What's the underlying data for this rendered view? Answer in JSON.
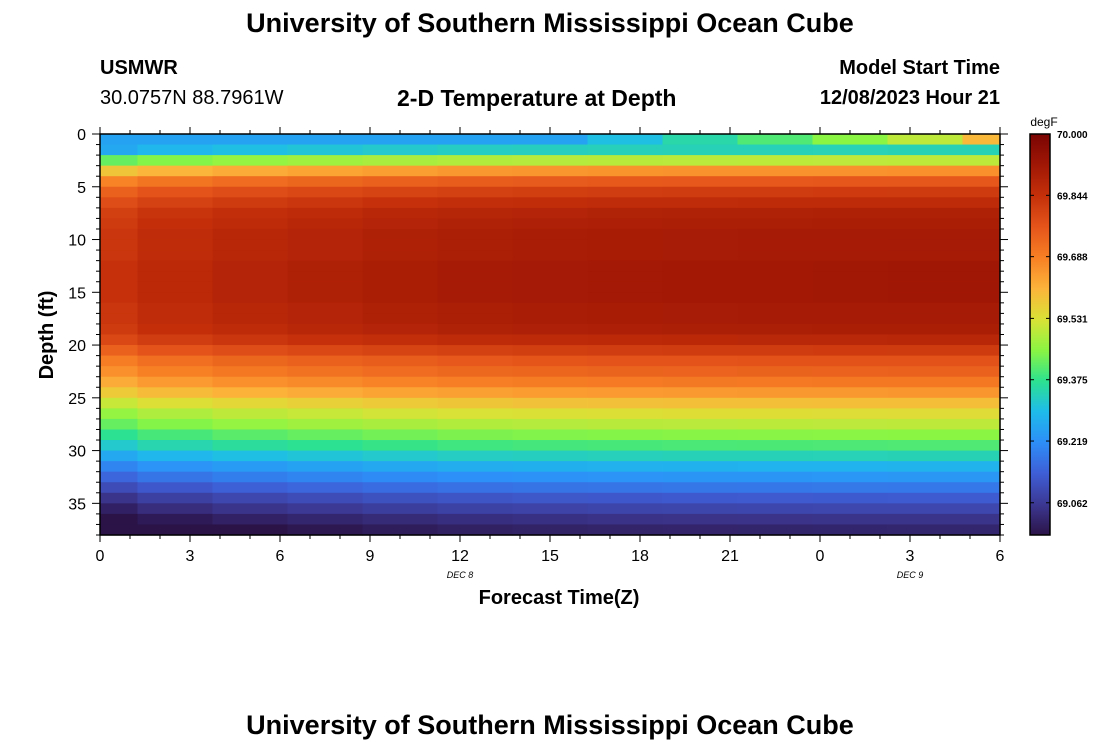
{
  "header": {
    "title": "University of Southern Mississippi Ocean Cube",
    "station": "USMWR",
    "coords": "30.0757N  88.7961W",
    "plot_title": "2-D Temperature at Depth",
    "start_label": "Model Start Time",
    "start_value": "12/08/2023 Hour 21"
  },
  "footer": {
    "title": "University of Southern Mississippi Ocean Cube"
  },
  "colorbar": {
    "unit": "degF",
    "min": 68.98,
    "max": 70.0,
    "ticks": [
      "70.000",
      "69.844",
      "69.688",
      "69.531",
      "69.375",
      "69.219",
      "69.062"
    ],
    "colors": [
      "#2b1347",
      "#3c3893",
      "#3e5ed6",
      "#2d8ef8",
      "#1ebcea",
      "#2de28f",
      "#8cf542",
      "#dae236",
      "#fcb33a",
      "#f77f24",
      "#e4541a",
      "#c5300a",
      "#a01705",
      "#7a0403"
    ]
  },
  "chart_data": {
    "type": "heatmap",
    "title": "2-D Temperature at Depth",
    "xlabel": "Forecast Time(Z)",
    "ylabel": "Depth (ft)",
    "x_ticks": [
      "0",
      "3",
      "6",
      "9",
      "12",
      "15",
      "18",
      "21",
      "0",
      "3",
      "6"
    ],
    "x_hours": [
      0,
      3,
      6,
      9,
      12,
      15,
      18,
      21,
      24,
      27,
      30
    ],
    "x_range": [
      0,
      30
    ],
    "date_labels": [
      {
        "text": "DEC 8",
        "hour": 12
      },
      {
        "text": "DEC 9",
        "hour": 27
      }
    ],
    "y_ticks": [
      "0",
      "5",
      "10",
      "15",
      "20",
      "25",
      "30",
      "35"
    ],
    "y_values": [
      0,
      5,
      10,
      15,
      20,
      25,
      30,
      35
    ],
    "y_range": [
      0,
      38
    ],
    "time_columns_hours": [
      0,
      1.25,
      3.75,
      6.25,
      8.75,
      11.25,
      13.75,
      16.25,
      18.75,
      21.25,
      23.75,
      26.25,
      28.75,
      30
    ],
    "depth_rows_ft": [
      0,
      1,
      2,
      3,
      4,
      5,
      6,
      7,
      8,
      9,
      10,
      11,
      12,
      13,
      14,
      15,
      16,
      17,
      18,
      19,
      20,
      21,
      22,
      23,
      24,
      25,
      26,
      27,
      28,
      29,
      30,
      31,
      32,
      33,
      34,
      35,
      36,
      37,
      38
    ],
    "profile_degF": [
      69.26,
      69.32,
      69.48,
      69.64,
      69.74,
      69.8,
      69.84,
      69.87,
      69.88,
      69.89,
      69.89,
      69.89,
      69.9,
      69.9,
      69.9,
      69.9,
      69.89,
      69.89,
      69.88,
      69.85,
      69.8,
      69.75,
      69.72,
      69.68,
      69.63,
      69.57,
      69.52,
      69.48,
      69.43,
      69.38,
      69.32,
      69.26,
      69.21,
      69.16,
      69.11,
      69.07,
      69.03,
      69.0
    ],
    "column_offsets_degF": [
      -0.06,
      -0.035,
      -0.02,
      -0.01,
      0.0,
      0.008,
      0.012,
      0.015,
      0.017,
      0.018,
      0.019,
      0.02,
      0.02
    ],
    "surface_row_degF": [
      69.25,
      69.25,
      69.25,
      69.25,
      69.25,
      69.25,
      69.25,
      69.3,
      69.35,
      69.4,
      69.45,
      69.5,
      69.6
    ]
  }
}
